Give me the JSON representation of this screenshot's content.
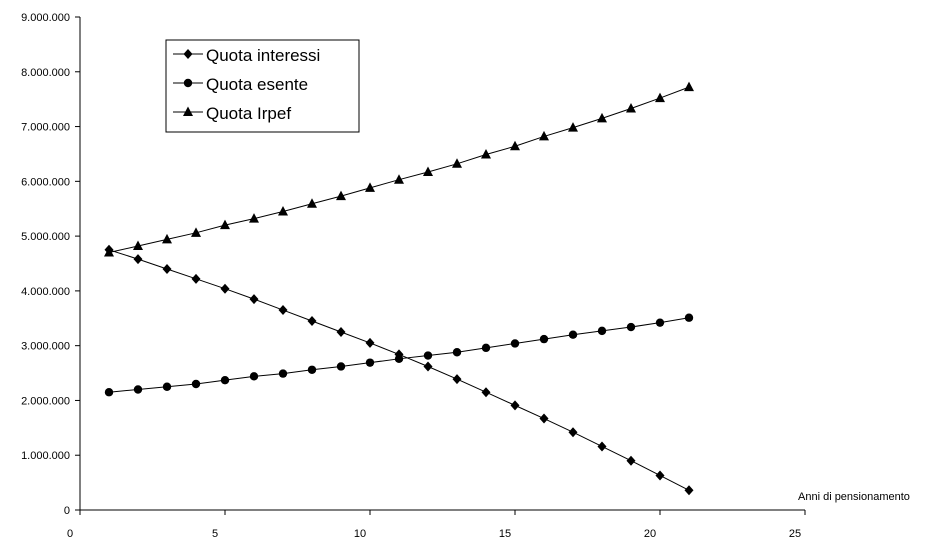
{
  "chart_data": {
    "type": "line",
    "title": "",
    "xlabel": "Anni di pensionamento",
    "ylabel": "",
    "xlim": [
      0,
      25
    ],
    "ylim": [
      0,
      9000000
    ],
    "x_ticks": [
      "0",
      "5",
      "10",
      "15",
      "20",
      "25"
    ],
    "y_ticks": [
      "0",
      "1.000.000",
      "2.000.000",
      "3.000.000",
      "4.000.000",
      "5.000.000",
      "6.000.000",
      "7.000.000",
      "8.000.000",
      "9.000.000"
    ],
    "grid": false,
    "legend": "top-left",
    "x": [
      1,
      2,
      3,
      4,
      5,
      6,
      7,
      8,
      9,
      10,
      11,
      12,
      13,
      14,
      15,
      16,
      17,
      18,
      19,
      20,
      21
    ],
    "series": [
      {
        "name": "Quota interessi",
        "marker": "diamond",
        "values": [
          4750000,
          4580000,
          4400000,
          4220000,
          4040000,
          3850000,
          3650000,
          3450000,
          3250000,
          3050000,
          2840000,
          2620000,
          2390000,
          2150000,
          1910000,
          1670000,
          1420000,
          1160000,
          900000,
          630000,
          360000
        ]
      },
      {
        "name": "Quota esente",
        "marker": "circle",
        "values": [
          2150000,
          2200000,
          2250000,
          2300000,
          2370000,
          2440000,
          2490000,
          2560000,
          2620000,
          2690000,
          2760000,
          2820000,
          2880000,
          2960000,
          3040000,
          3120000,
          3200000,
          3270000,
          3340000,
          3420000,
          3510000
        ]
      },
      {
        "name": "Quota Irpef",
        "marker": "triangle",
        "values": [
          4700000,
          4820000,
          4940000,
          5060000,
          5200000,
          5320000,
          5450000,
          5590000,
          5730000,
          5880000,
          6030000,
          6170000,
          6320000,
          6490000,
          6640000,
          6820000,
          6980000,
          7150000,
          7330000,
          7520000,
          7720000
        ]
      }
    ]
  }
}
